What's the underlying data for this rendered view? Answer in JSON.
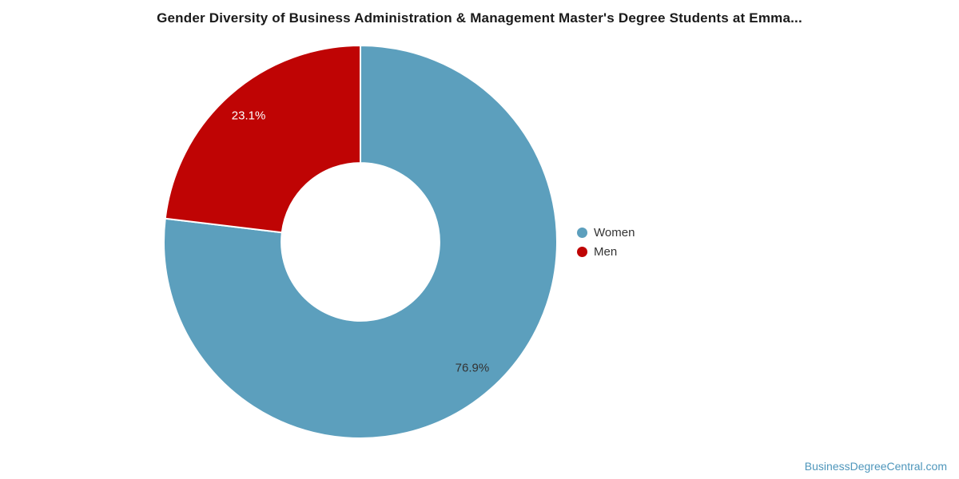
{
  "title": "Gender Diversity of Business Administration & Management Master's Degree Students at Emma...",
  "chart_data": {
    "type": "pie",
    "subtype": "donut",
    "title": "Gender Diversity of Business Administration & Management Master's Degree Students at Emma...",
    "categories": [
      "Women",
      "Men"
    ],
    "values": [
      76.9,
      23.1
    ],
    "slice_colors": [
      "#5C9FBD",
      "#BF0404"
    ],
    "data_labels": [
      "76.9%",
      "23.1%"
    ],
    "data_label_colors": [
      "#333333",
      "#ffffff"
    ],
    "start_angle_deg": 0,
    "direction": "clockwise",
    "inner_radius_ratio": 0.402,
    "slice_border_color": "#ffffff",
    "legend_position": "right",
    "legend_entries": [
      "Women",
      "Men"
    ]
  },
  "footer": {
    "watermark": "BusinessDegreeCentral.com",
    "watermark_color": "#4E96BB"
  }
}
